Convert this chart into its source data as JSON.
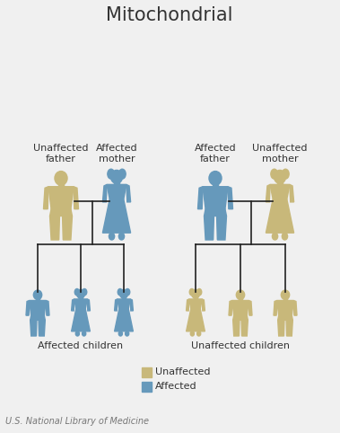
{
  "title": "Mitochondrial",
  "title_fontsize": 15,
  "background_color": "#f0f0f0",
  "unaffected_color": "#c8b87a",
  "affected_color": "#6699bb",
  "line_color": "#222222",
  "footer_text": "U.S. National Library of Medicine",
  "legend_unaffected": "Unaffected",
  "legend_affected": "Affected",
  "left_parent_labels": [
    "Unaffected\nfather",
    "Affected\nmother"
  ],
  "right_parent_labels": [
    "Affected\nfather",
    "Unaffected\nmother"
  ],
  "left_child_label": "Affected children",
  "right_child_label": "Unaffected children",
  "text_color": "#333333",
  "label_fontsize": 8,
  "footer_fontsize": 7,
  "fig_width": 3.79,
  "fig_height": 4.82,
  "dpi": 100
}
